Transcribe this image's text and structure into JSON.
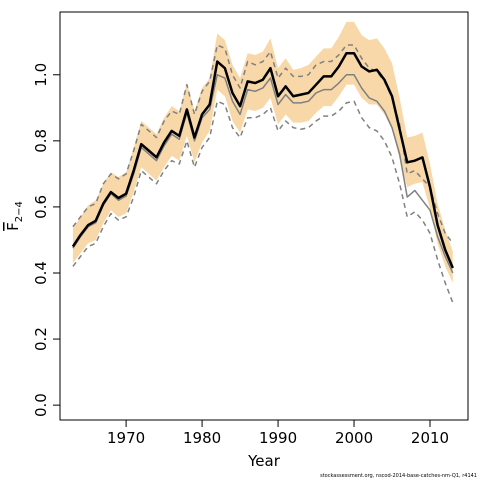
{
  "chart_data": {
    "type": "line",
    "xlabel": "Year",
    "ylabel": {
      "main": "F",
      "sub": "2−4"
    },
    "footnote": "stockassessment.org, nscod-2014-base-catches-nm-Q1, r4141",
    "x": [
      1963,
      1964,
      1965,
      1966,
      1967,
      1968,
      1969,
      1970,
      1971,
      1972,
      1973,
      1974,
      1975,
      1976,
      1977,
      1978,
      1979,
      1980,
      1981,
      1982,
      1983,
      1984,
      1985,
      1986,
      1987,
      1988,
      1989,
      1990,
      1991,
      1992,
      1993,
      1994,
      1995,
      1996,
      1997,
      1998,
      1999,
      2000,
      2001,
      2002,
      2003,
      2004,
      2005,
      2006,
      2007,
      2008,
      2009,
      2010,
      2011,
      2012,
      2013
    ],
    "band": {
      "color": "#f8d8a8",
      "lower": [
        0.43,
        0.46,
        0.49,
        0.5,
        0.55,
        0.59,
        0.57,
        0.58,
        0.645,
        0.72,
        0.7,
        0.68,
        0.72,
        0.755,
        0.74,
        0.815,
        0.735,
        0.795,
        0.83,
        0.955,
        0.935,
        0.86,
        0.825,
        0.895,
        0.89,
        0.9,
        0.93,
        0.85,
        0.88,
        0.855,
        0.855,
        0.86,
        0.885,
        0.905,
        0.905,
        0.935,
        0.97,
        0.97,
        0.93,
        0.91,
        0.91,
        0.88,
        0.835,
        0.745,
        0.66,
        0.67,
        0.675,
        0.595,
        0.49,
        0.42,
        0.37
      ],
      "upper": [
        0.535,
        0.57,
        0.605,
        0.62,
        0.67,
        0.705,
        0.69,
        0.705,
        0.78,
        0.86,
        0.84,
        0.82,
        0.87,
        0.905,
        0.89,
        0.975,
        0.89,
        0.96,
        0.99,
        1.125,
        1.105,
        1.03,
        0.99,
        1.065,
        1.06,
        1.07,
        1.11,
        1.02,
        1.05,
        1.015,
        1.02,
        1.03,
        1.055,
        1.08,
        1.08,
        1.115,
        1.16,
        1.16,
        1.12,
        1.105,
        1.11,
        1.08,
        1.035,
        0.93,
        0.81,
        0.815,
        0.825,
        0.73,
        0.61,
        0.53,
        0.465
      ]
    },
    "series": [
      {
        "color": "#808080",
        "dash": true,
        "width": 1.5,
        "values": [
          0.42,
          0.45,
          0.48,
          0.49,
          0.54,
          0.58,
          0.56,
          0.57,
          0.63,
          0.71,
          0.69,
          0.67,
          0.71,
          0.74,
          0.73,
          0.8,
          0.72,
          0.78,
          0.81,
          0.92,
          0.91,
          0.84,
          0.81,
          0.87,
          0.87,
          0.88,
          0.9,
          0.83,
          0.86,
          0.84,
          0.835,
          0.84,
          0.86,
          0.875,
          0.875,
          0.89,
          0.915,
          0.92,
          0.87,
          0.84,
          0.83,
          0.8,
          0.75,
          0.67,
          0.57,
          0.585,
          0.56,
          0.52,
          0.44,
          0.37,
          0.31
        ]
      },
      {
        "color": "#808080",
        "dash": true,
        "width": 1.5,
        "values": [
          0.54,
          0.57,
          0.6,
          0.61,
          0.67,
          0.7,
          0.685,
          0.7,
          0.77,
          0.85,
          0.83,
          0.81,
          0.86,
          0.89,
          0.88,
          0.97,
          0.88,
          0.95,
          0.98,
          1.09,
          1.08,
          1.0,
          0.96,
          1.04,
          1.03,
          1.04,
          1.07,
          0.99,
          1.02,
          0.995,
          0.995,
          1.0,
          1.03,
          1.04,
          1.04,
          1.06,
          1.09,
          1.09,
          1.05,
          1.02,
          1.01,
          0.98,
          0.93,
          0.85,
          0.7,
          0.71,
          0.685,
          0.66,
          0.58,
          0.52,
          0.49
        ]
      },
      {
        "color": "#808080",
        "dash": false,
        "width": 1.5,
        "values": [
          0.475,
          0.51,
          0.54,
          0.552,
          0.605,
          0.64,
          0.62,
          0.633,
          0.7,
          0.78,
          0.76,
          0.74,
          0.785,
          0.82,
          0.805,
          0.885,
          0.8,
          0.87,
          0.895,
          1.0,
          0.99,
          0.92,
          0.88,
          0.955,
          0.95,
          0.96,
          0.99,
          0.91,
          0.94,
          0.915,
          0.915,
          0.92,
          0.945,
          0.955,
          0.955,
          0.975,
          1.0,
          1.0,
          0.96,
          0.93,
          0.92,
          0.89,
          0.84,
          0.76,
          0.63,
          0.65,
          0.62,
          0.59,
          0.51,
          0.45,
          0.4
        ]
      },
      {
        "color": "#000000",
        "dash": false,
        "width": 2.5,
        "values": [
          0.48,
          0.515,
          0.545,
          0.558,
          0.61,
          0.645,
          0.627,
          0.64,
          0.71,
          0.79,
          0.77,
          0.75,
          0.795,
          0.83,
          0.815,
          0.895,
          0.81,
          0.88,
          0.91,
          1.04,
          1.02,
          0.945,
          0.905,
          0.98,
          0.975,
          0.985,
          1.02,
          0.935,
          0.965,
          0.935,
          0.94,
          0.945,
          0.97,
          0.995,
          0.995,
          1.025,
          1.065,
          1.065,
          1.025,
          1.01,
          1.015,
          0.985,
          0.935,
          0.835,
          0.735,
          0.74,
          0.75,
          0.66,
          0.545,
          0.47,
          0.415
        ]
      }
    ],
    "xlim": [
      1961.3,
      2015
    ],
    "xticks": [
      1970,
      1980,
      1990,
      2000,
      2010
    ],
    "ylim": [
      -0.045,
      1.19
    ],
    "yticks": [
      {
        "value": 0,
        "label": "0.0"
      },
      0.2,
      0.4,
      0.6,
      0.8,
      {
        "value": 1,
        "label": "1.0"
      }
    ]
  }
}
